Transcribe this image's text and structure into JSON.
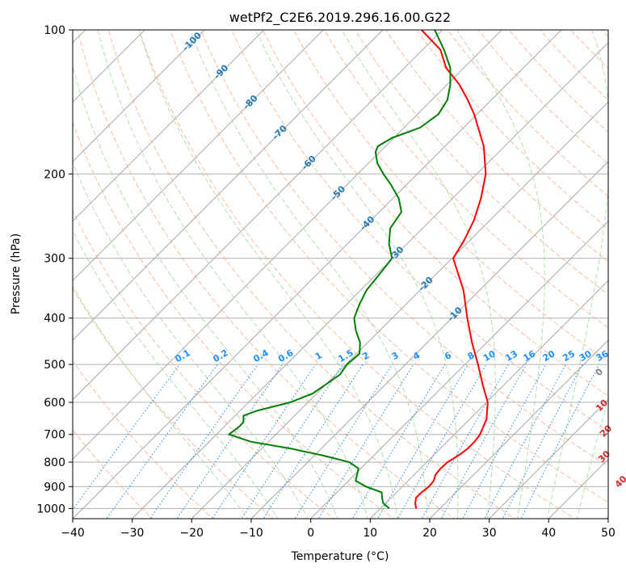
{
  "chart_data": {
    "type": "skew-t",
    "title": "wetPf2_C2E6.2019.296.16.00.G22",
    "xlabel": "Temperature (°C)",
    "ylabel": "Pressure (hPa)",
    "xlim": [
      -40,
      50
    ],
    "ylim": [
      1050,
      100
    ],
    "y_scale": "log",
    "xticks": [
      -40,
      -30,
      -20,
      -10,
      0,
      10,
      20,
      30,
      40,
      50
    ],
    "yticks": [
      100,
      200,
      300,
      400,
      500,
      600,
      700,
      800,
      900,
      1000
    ],
    "grid": true,
    "colors": {
      "temperature": "#ff0000",
      "dewpoint": "#008000",
      "dry_adiabats": "#f4a582",
      "moist_adiabats": "#a6d8a0",
      "mixing_ratio": "#1e88e5",
      "isotherms": "#808080",
      "dry_adiabat_labels": "#d62728",
      "isotherm_labels": "#1f77b4",
      "mixing_ratio_labels": "#1e90ff",
      "zero_label": "#808080"
    },
    "series": [
      {
        "name": "",
        "role": "temperature",
        "points": [
          {
            "p": 1000,
            "t": 16.0
          },
          {
            "p": 975,
            "t": 15.0
          },
          {
            "p": 950,
            "t": 14.2
          },
          {
            "p": 925,
            "t": 14.2
          },
          {
            "p": 900,
            "t": 14.5
          },
          {
            "p": 875,
            "t": 14.3
          },
          {
            "p": 850,
            "t": 13.6
          },
          {
            "p": 825,
            "t": 13.4
          },
          {
            "p": 800,
            "t": 13.5
          },
          {
            "p": 775,
            "t": 14.2
          },
          {
            "p": 750,
            "t": 14.6
          },
          {
            "p": 725,
            "t": 14.6
          },
          {
            "p": 700,
            "t": 14.3
          },
          {
            "p": 650,
            "t": 12.8
          },
          {
            "p": 600,
            "t": 10.2
          },
          {
            "p": 550,
            "t": 6.3
          },
          {
            "p": 500,
            "t": 2.2
          },
          {
            "p": 450,
            "t": -2.5
          },
          {
            "p": 400,
            "t": -7.4
          },
          {
            "p": 350,
            "t": -12.7
          },
          {
            "p": 300,
            "t": -19.8
          },
          {
            "p": 275,
            "t": -21.0
          },
          {
            "p": 250,
            "t": -22.7
          },
          {
            "p": 225,
            "t": -25.2
          },
          {
            "p": 200,
            "t": -28.5
          },
          {
            "p": 175,
            "t": -33.5
          },
          {
            "p": 150,
            "t": -40.5
          },
          {
            "p": 140,
            "t": -44.0
          },
          {
            "p": 130,
            "t": -48.0
          },
          {
            "p": 120,
            "t": -53.0
          },
          {
            "p": 110,
            "t": -57.0
          },
          {
            "p": 100,
            "t": -63.5
          }
        ]
      },
      {
        "name": "",
        "role": "dewpoint",
        "points": [
          {
            "p": 1000,
            "t": 11.5
          },
          {
            "p": 975,
            "t": 9.6
          },
          {
            "p": 950,
            "t": 8.5
          },
          {
            "p": 925,
            "t": 7.5
          },
          {
            "p": 900,
            "t": 3.9
          },
          {
            "p": 875,
            "t": 1.2
          },
          {
            "p": 850,
            "t": 0.4
          },
          {
            "p": 825,
            "t": -0.4
          },
          {
            "p": 800,
            "t": -3.0
          },
          {
            "p": 775,
            "t": -8.5
          },
          {
            "p": 750,
            "t": -15.0
          },
          {
            "p": 725,
            "t": -23.0
          },
          {
            "p": 700,
            "t": -27.9
          },
          {
            "p": 675,
            "t": -27.5
          },
          {
            "p": 660,
            "t": -27.5
          },
          {
            "p": 640,
            "t": -28.6
          },
          {
            "p": 625,
            "t": -27.2
          },
          {
            "p": 600,
            "t": -23.0
          },
          {
            "p": 575,
            "t": -20.7
          },
          {
            "p": 550,
            "t": -20.0
          },
          {
            "p": 525,
            "t": -19.3
          },
          {
            "p": 500,
            "t": -19.8
          },
          {
            "p": 475,
            "t": -19.5
          },
          {
            "p": 450,
            "t": -21.3
          },
          {
            "p": 425,
            "t": -24.0
          },
          {
            "p": 400,
            "t": -26.4
          },
          {
            "p": 375,
            "t": -27.8
          },
          {
            "p": 350,
            "t": -29.0
          },
          {
            "p": 325,
            "t": -29.5
          },
          {
            "p": 300,
            "t": -30.1
          },
          {
            "p": 280,
            "t": -33.0
          },
          {
            "p": 260,
            "t": -35.4
          },
          {
            "p": 240,
            "t": -36.3
          },
          {
            "p": 225,
            "t": -39.0
          },
          {
            "p": 210,
            "t": -42.8
          },
          {
            "p": 200,
            "t": -45.7
          },
          {
            "p": 190,
            "t": -48.5
          },
          {
            "p": 180,
            "t": -50.7
          },
          {
            "p": 175,
            "t": -51.3
          },
          {
            "p": 168,
            "t": -50.3
          },
          {
            "p": 160,
            "t": -47.3
          },
          {
            "p": 150,
            "t": -46.5
          },
          {
            "p": 140,
            "t": -47.4
          },
          {
            "p": 130,
            "t": -49.5
          },
          {
            "p": 120,
            "t": -52.3
          },
          {
            "p": 110,
            "t": -56.4
          },
          {
            "p": 100,
            "t": -61.3
          }
        ]
      }
    ],
    "isotherm_labels": [
      "-100",
      "-90",
      "-80",
      "-70",
      "-60",
      "-50",
      "-40",
      "-30",
      "-20",
      "-10"
    ],
    "isotherm_label_values": [
      -100,
      -90,
      -80,
      -70,
      -60,
      -50,
      -40,
      -30,
      -20,
      -10
    ],
    "mixing_ratio_labels": [
      "0.1",
      "0.2",
      "0.4",
      "0.6",
      "1",
      "1.5",
      "2",
      "3",
      "4",
      "6",
      "8",
      "10",
      "13",
      "16",
      "20",
      "25",
      "30",
      "36"
    ],
    "mixing_ratio_values": [
      0.1,
      0.2,
      0.4,
      0.6,
      1,
      1.5,
      2,
      3,
      4,
      6,
      8,
      10,
      13,
      16,
      20,
      25,
      30,
      36
    ],
    "dry_adiabat_labels": [
      "0",
      "10",
      "20",
      "30",
      "40"
    ],
    "dry_adiabat_label_values": [
      0,
      10,
      20,
      30,
      40
    ]
  }
}
